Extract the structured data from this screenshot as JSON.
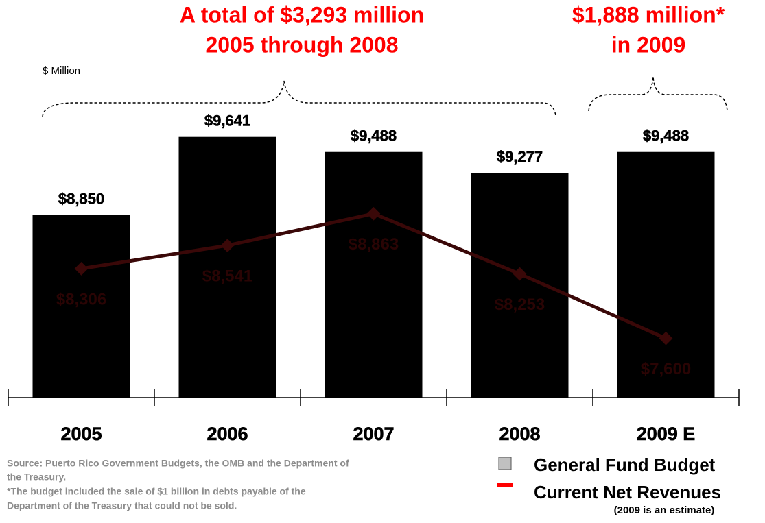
{
  "chart_data": {
    "type": "bar-line",
    "title_left": [
      "A total of $3,293 million",
      "2005 through 2008"
    ],
    "title_right": [
      "$1,888 million*",
      "in 2009"
    ],
    "y_label": "$ Million",
    "categories": [
      "2005",
      "2006",
      "2007",
      "2008",
      "2009 E"
    ],
    "ylim": [
      7000,
      10000
    ],
    "series": [
      {
        "name": "General Fund Budget",
        "type": "bar",
        "color": "#000000",
        "legend_color": "#c0c0c0",
        "values": [
          8850,
          9641,
          9488,
          9277,
          9488
        ],
        "value_labels": [
          "$8,850",
          "$9,641",
          "$9,488",
          "$9,277",
          "$9,488"
        ]
      },
      {
        "name": "Current Net Revenues",
        "type": "line",
        "color": "#3a0808",
        "legend_color": "#ff0000",
        "values": [
          8306,
          8541,
          8863,
          8253,
          7600
        ],
        "value_labels": [
          "$8,306",
          "$8,541",
          "$8,863",
          "$8,253",
          "$7,600"
        ]
      }
    ],
    "notes": [
      "Source: Puerto Rico Government Budgets, the OMB and the Department of",
      "the Treasury.",
      "*The budget included the sale of $1 billion in debts payable of the",
      "Department of the Treasury that could not be sold."
    ],
    "legend_note": "(2009 is an estimate)"
  }
}
